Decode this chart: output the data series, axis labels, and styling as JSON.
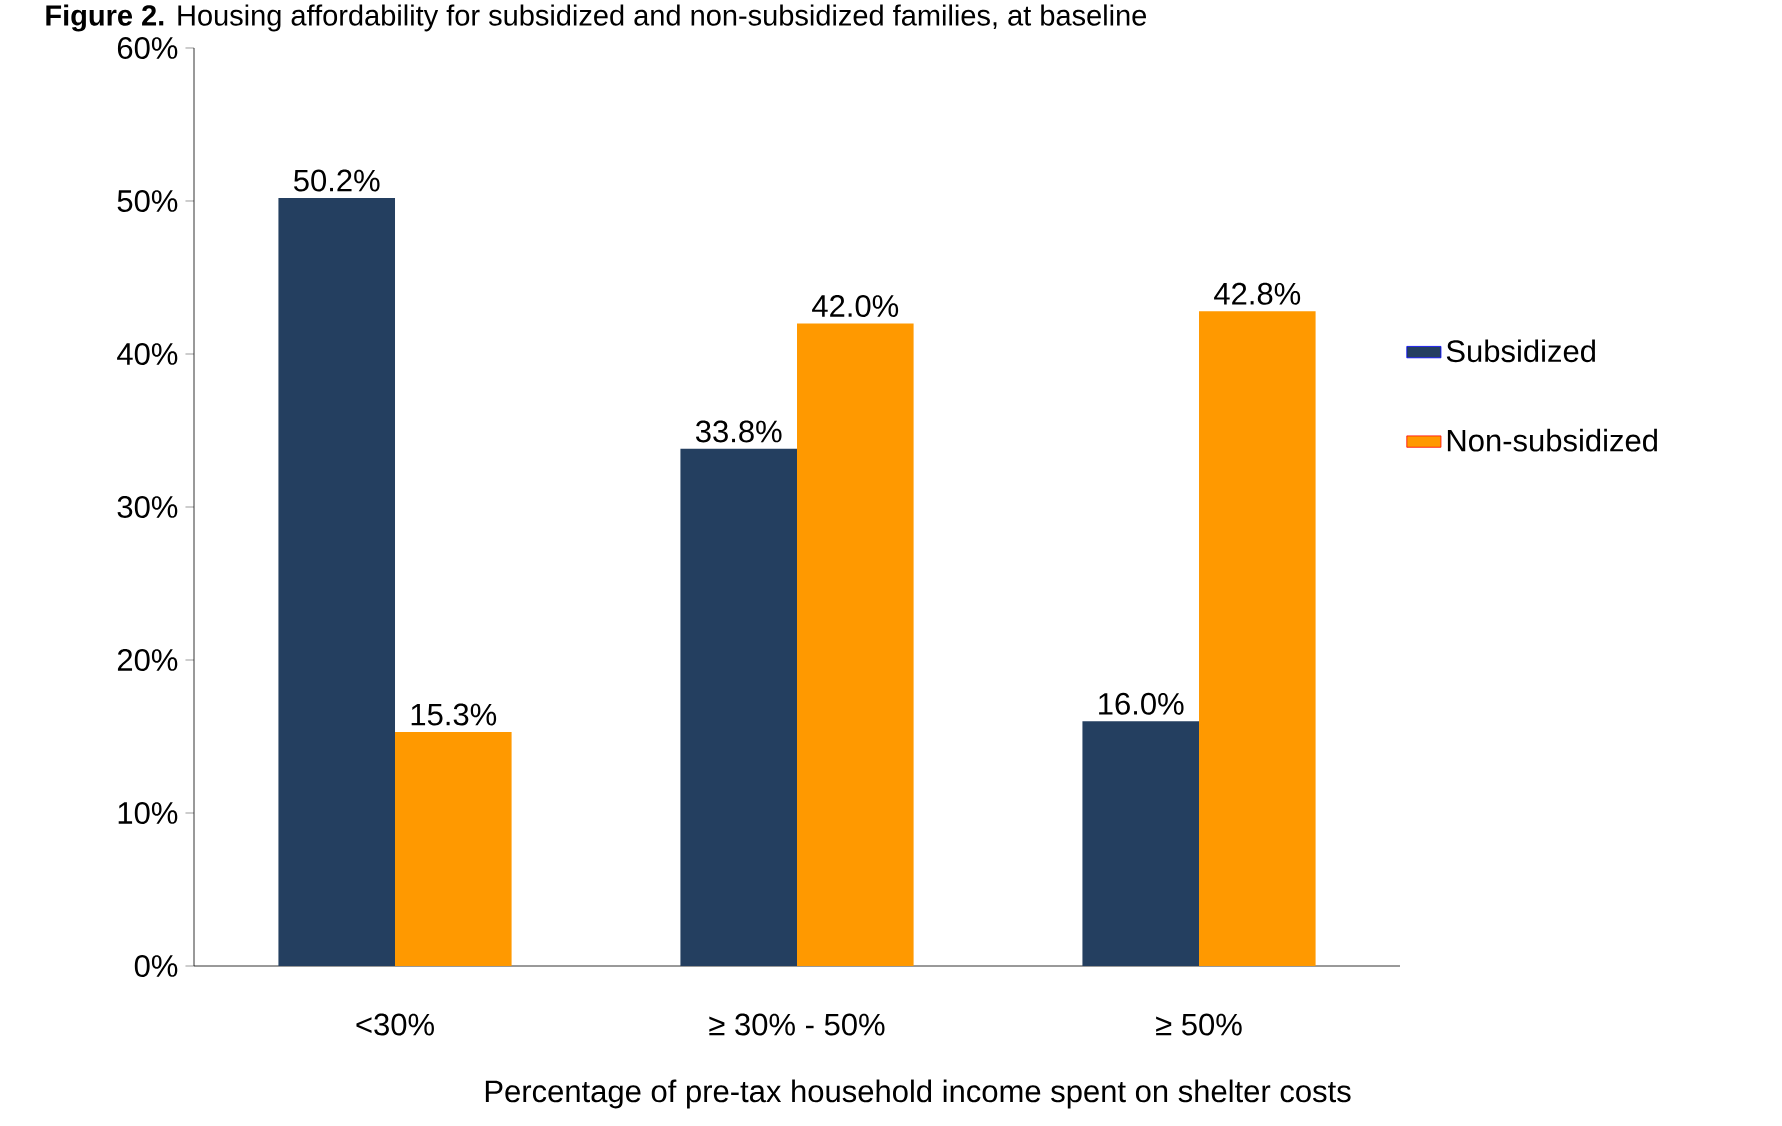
{
  "chart_data": {
    "type": "bar",
    "title": "**Figure 2.** Housing affordability for subsidized and non-subsidized families, at baseline",
    "xlabel": "Percentage of pre-tax household income spent on shelter costs",
    "categories": [
      "<30%",
      "≥ 30% - 50%",
      "≥ 50%"
    ],
    "series": [
      {
        "name": "Subsidized",
        "color": "#243f60",
        "values": [
          50.2,
          33.8,
          16.0
        ],
        "value_labels": [
          "50.2%",
          "33.8%",
          "16.0%"
        ]
      },
      {
        "name": "Non-subsidized",
        "color": "#ff9900",
        "values": [
          15.3,
          42.0,
          42.8
        ],
        "value_labels": [
          "15.3%",
          "42.0%",
          "42.8%"
        ]
      }
    ],
    "ylim": [
      0,
      60
    ],
    "yticks": [
      {
        "value": 0,
        "label": "0%"
      },
      {
        "value": 10,
        "label": "10%"
      },
      {
        "value": 20,
        "label": "20%"
      },
      {
        "value": 30,
        "label": "30%"
      },
      {
        "value": 40,
        "label": "40%"
      },
      {
        "value": 50,
        "label": "50%"
      },
      {
        "value": 60,
        "label": "60%"
      }
    ],
    "grid": false,
    "legend": "right"
  }
}
